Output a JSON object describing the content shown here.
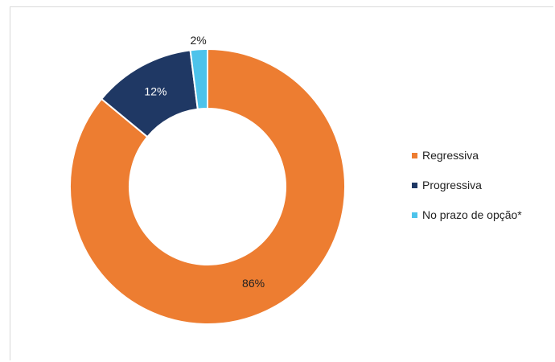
{
  "chart_data": {
    "type": "donut",
    "categories": [
      "Regressiva",
      "Progressiva",
      "No prazo de opção*"
    ],
    "values": [
      86,
      12,
      2
    ],
    "labels": [
      "86%",
      "12%",
      "2%"
    ],
    "colors": [
      "#ED7D31",
      "#1F3864",
      "#4DC3EB"
    ],
    "legend_position": "right"
  }
}
